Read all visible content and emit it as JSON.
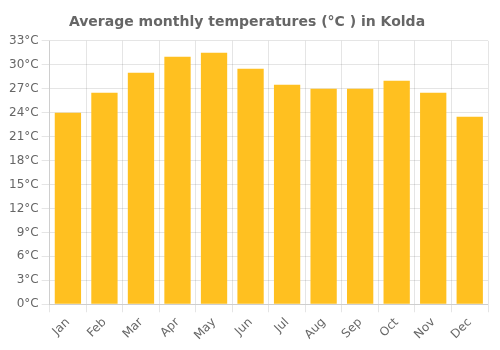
{
  "chart_data": {
    "type": "bar",
    "title": "Average monthly temperatures (°C ) in Kolda",
    "categories": [
      "Jan",
      "Feb",
      "Mar",
      "Apr",
      "May",
      "Jun",
      "Jul",
      "Aug",
      "Sep",
      "Oct",
      "Nov",
      "Dec"
    ],
    "values": [
      24.0,
      26.5,
      29.0,
      31.0,
      31.5,
      29.5,
      27.5,
      27.0,
      27.0,
      28.0,
      26.5,
      23.5
    ],
    "color": "#FFC020",
    "ylim": [
      0,
      33
    ],
    "yticks": [
      {
        "value": 0,
        "label": "0°C"
      },
      {
        "value": 3,
        "label": "3°C"
      },
      {
        "value": 6,
        "label": "6°C"
      },
      {
        "value": 9,
        "label": "9°C"
      },
      {
        "value": 12,
        "label": "12°C"
      },
      {
        "value": 15,
        "label": "15°C"
      },
      {
        "value": 18,
        "label": "18°C"
      },
      {
        "value": 21,
        "label": "21°C"
      },
      {
        "value": 24,
        "label": "24°C"
      },
      {
        "value": 27,
        "label": "27°C"
      },
      {
        "value": 30,
        "label": "30°C"
      },
      {
        "value": 33,
        "label": "33°C"
      }
    ],
    "grid": true
  }
}
